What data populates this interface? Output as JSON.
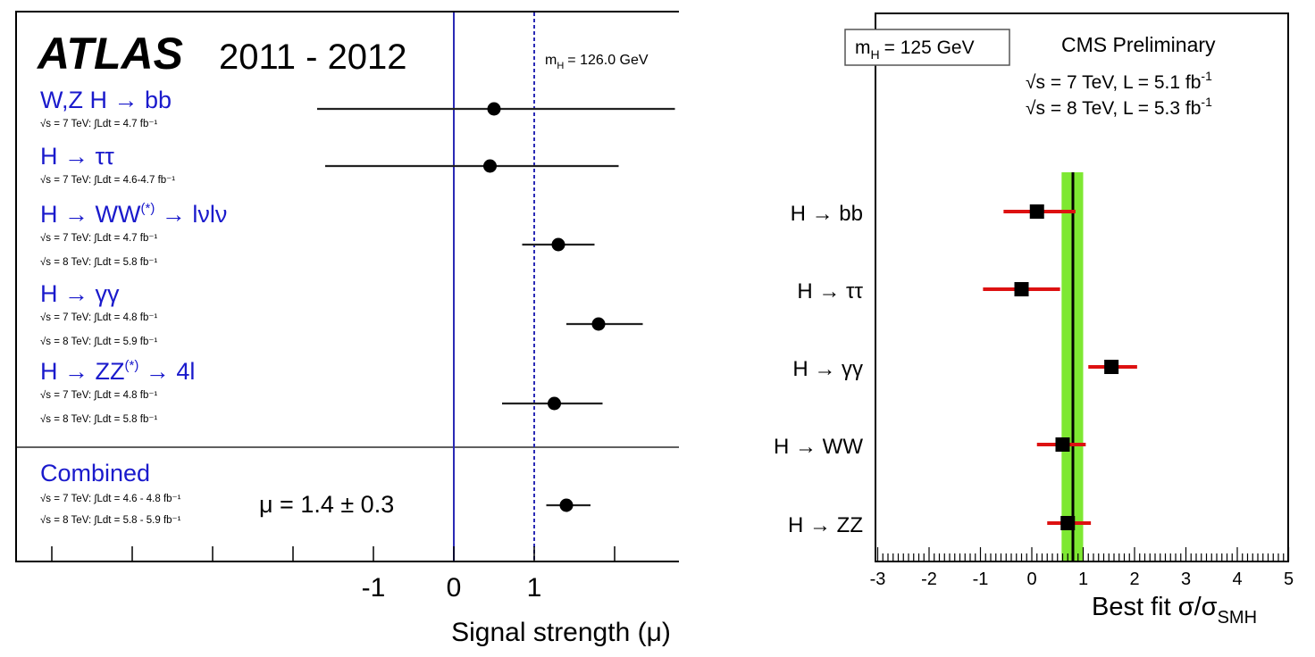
{
  "chart_data": [
    {
      "type": "scatter",
      "experiment": "ATLAS",
      "period": "2011 - 2012",
      "mass_label": "m",
      "mass_sub": "H",
      "mass_value": "= 126.0 GeV",
      "xlabel": "Signal strength (μ)",
      "xlim": [
        -1.95,
        2.85
      ],
      "xticks": [
        -1,
        0,
        1
      ],
      "reference_lines": [
        0,
        1
      ],
      "categories": [
        {
          "name": "W,Z H → bb",
          "sup": "",
          "tail": "",
          "lumi": [
            "√s = 7 TeV: ∫Ldt = 4.7 fb⁻¹"
          ],
          "mu": 0.5,
          "lo": -1.7,
          "hi": 2.75
        },
        {
          "name": "H → ττ",
          "sup": "",
          "tail": "",
          "lumi": [
            "√s = 7 TeV: ∫Ldt = 4.6-4.7 fb⁻¹"
          ],
          "mu": 0.45,
          "lo": -1.6,
          "hi": 2.05
        },
        {
          "name": "H → WW",
          "sup": "(*)",
          "tail": " → lνlν",
          "lumi": [
            "√s = 7 TeV: ∫Ldt = 4.7 fb⁻¹",
            "√s = 8 TeV: ∫Ldt = 5.8 fb⁻¹"
          ],
          "mu": 1.3,
          "lo": 0.85,
          "hi": 1.75
        },
        {
          "name": "H → γγ",
          "sup": "",
          "tail": "",
          "lumi": [
            "√s = 7 TeV: ∫Ldt = 4.8 fb⁻¹",
            "√s = 8 TeV: ∫Ldt = 5.9 fb⁻¹"
          ],
          "mu": 1.8,
          "lo": 1.4,
          "hi": 2.35
        },
        {
          "name": "H → ZZ",
          "sup": "(*)",
          "tail": " → 4l",
          "lumi": [
            "√s = 7 TeV: ∫Ldt = 4.8 fb⁻¹",
            "√s = 8 TeV: ∫Ldt = 5.8 fb⁻¹"
          ],
          "mu": 1.25,
          "lo": 0.6,
          "hi": 1.85
        }
      ],
      "combined": {
        "name": "Combined",
        "lumi": [
          "√s = 7 TeV: ∫Ldt = 4.6 - 4.8 fb⁻¹",
          "√s = 8 TeV: ∫Ldt = 5.8 - 5.9 fb⁻¹"
        ],
        "result": "μ = 1.4 ± 0.3",
        "mu": 1.4,
        "lo": 1.15,
        "hi": 1.7
      },
      "colors": {
        "labels": "#1a1acc",
        "vline": "#2a2ab5",
        "points": "#000000"
      }
    },
    {
      "type": "scatter",
      "title": "CMS Preliminary",
      "mass_box": "m",
      "mass_sub": "H",
      "mass_value": "= 125 GeV",
      "energy_lines": [
        {
          "text": "√s = 7 TeV, L = 5.1 fb",
          "sup": "-1"
        },
        {
          "text": "√s = 8 TeV, L = 5.3 fb",
          "sup": "-1"
        }
      ],
      "xlabel": "Best fit σ/σ",
      "xlabel_sub": "SMH",
      "xlim": [
        -3,
        5
      ],
      "xticks": [
        -3,
        -2,
        -1,
        0,
        1,
        2,
        3,
        4,
        5
      ],
      "combined_band": {
        "center": 0.8,
        "lo": 0.58,
        "hi": 1.0
      },
      "categories": [
        {
          "name": "H → bb",
          "mu": 0.1,
          "lo": -0.55,
          "hi": 0.85
        },
        {
          "name": "H → ττ",
          "mu": -0.2,
          "lo": -0.95,
          "hi": 0.55
        },
        {
          "name": "H → γγ",
          "mu": 1.55,
          "lo": 1.1,
          "hi": 2.05
        },
        {
          "name": "H → WW",
          "mu": 0.6,
          "lo": 0.1,
          "hi": 1.05
        },
        {
          "name": "H → ZZ",
          "mu": 0.7,
          "lo": 0.3,
          "hi": 1.15
        }
      ],
      "colors": {
        "band": "#7ee832",
        "errbar": "#dd1111",
        "points": "#000000"
      }
    }
  ]
}
